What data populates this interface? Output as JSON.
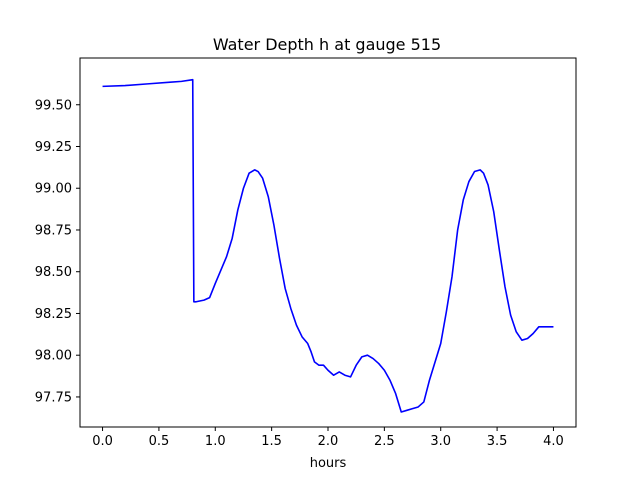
{
  "chart_data": {
    "type": "line",
    "title": "Water Depth h at gauge 515",
    "xlabel": "hours",
    "ylabel": "",
    "xlim": [
      -0.2,
      4.2
    ],
    "ylim": [
      97.57,
      99.78
    ],
    "xticks": [
      0.0,
      0.5,
      1.0,
      1.5,
      2.0,
      2.5,
      3.0,
      3.5,
      4.0
    ],
    "xtick_labels": [
      "0.0",
      "0.5",
      "1.0",
      "1.5",
      "2.0",
      "2.5",
      "3.0",
      "3.5",
      "4.0"
    ],
    "yticks": [
      97.75,
      98.0,
      98.25,
      98.5,
      98.75,
      99.0,
      99.25,
      99.5
    ],
    "ytick_labels": [
      "97.75",
      "98.00",
      "98.25",
      "98.50",
      "98.75",
      "99.00",
      "99.25",
      "99.50"
    ],
    "grid": false,
    "line_color": "#0000ff",
    "series": [
      {
        "name": "",
        "x": [
          0.0,
          0.2,
          0.4,
          0.6,
          0.7,
          0.8,
          0.81,
          0.83,
          0.9,
          0.95,
          1.0,
          1.05,
          1.1,
          1.15,
          1.2,
          1.25,
          1.3,
          1.35,
          1.38,
          1.42,
          1.47,
          1.52,
          1.57,
          1.62,
          1.67,
          1.72,
          1.77,
          1.82,
          1.85,
          1.88,
          1.92,
          1.96,
          2.0,
          2.05,
          2.1,
          2.15,
          2.2,
          2.25,
          2.3,
          2.35,
          2.4,
          2.45,
          2.5,
          2.55,
          2.6,
          2.65,
          2.7,
          2.75,
          2.8,
          2.85,
          2.9,
          2.95,
          3.0,
          3.05,
          3.1,
          3.15,
          3.2,
          3.25,
          3.3,
          3.35,
          3.38,
          3.42,
          3.47,
          3.52,
          3.57,
          3.62,
          3.67,
          3.72,
          3.77,
          3.82,
          3.87,
          3.9,
          3.95,
          4.0
        ],
        "y": [
          99.61,
          99.615,
          99.625,
          99.635,
          99.64,
          99.65,
          98.32,
          98.32,
          98.33,
          98.345,
          98.43,
          98.51,
          98.59,
          98.7,
          98.87,
          99.0,
          99.09,
          99.11,
          99.1,
          99.06,
          98.95,
          98.78,
          98.58,
          98.4,
          98.28,
          98.18,
          98.11,
          98.07,
          98.02,
          97.96,
          97.94,
          97.94,
          97.91,
          97.88,
          97.9,
          97.88,
          97.87,
          97.94,
          97.99,
          98.0,
          97.98,
          97.95,
          97.91,
          97.85,
          97.77,
          97.66,
          97.67,
          97.68,
          97.69,
          97.72,
          97.85,
          97.96,
          98.07,
          98.26,
          98.47,
          98.75,
          98.93,
          99.04,
          99.1,
          99.11,
          99.09,
          99.02,
          98.86,
          98.63,
          98.41,
          98.24,
          98.14,
          98.09,
          98.1,
          98.13,
          98.17,
          98.17,
          98.17,
          98.17
        ]
      }
    ]
  }
}
